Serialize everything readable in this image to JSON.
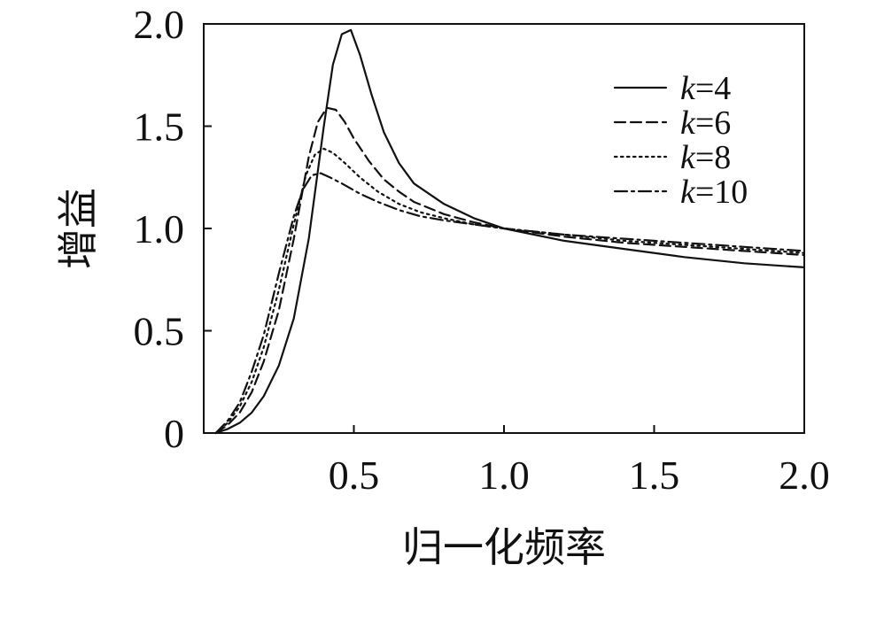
{
  "chart_data": {
    "type": "line",
    "title": "",
    "xlabel": "归一化频率",
    "ylabel": "增益",
    "xlim": [
      0,
      2.0
    ],
    "ylim": [
      0,
      2.0
    ],
    "xticks": [
      {
        "value": 0.5,
        "label": "0.5"
      },
      {
        "value": 1.0,
        "label": "1.0"
      },
      {
        "value": 1.5,
        "label": "1.5"
      },
      {
        "value": 2.0,
        "label": "2.0"
      }
    ],
    "yticks": [
      {
        "value": 0,
        "label": "0"
      },
      {
        "value": 0.5,
        "label": "0.5"
      },
      {
        "value": 1.0,
        "label": "1.0"
      },
      {
        "value": 1.5,
        "label": "1.5"
      },
      {
        "value": 2.0,
        "label": "2.0"
      }
    ],
    "grid": false,
    "legend_position": "top-right",
    "series": [
      {
        "name": "k=4",
        "name_var": "k",
        "name_rest": "=4",
        "dash": "solid",
        "x": [
          0.04,
          0.08,
          0.12,
          0.16,
          0.2,
          0.25,
          0.3,
          0.35,
          0.4,
          0.43,
          0.46,
          0.49,
          0.52,
          0.56,
          0.6,
          0.65,
          0.7,
          0.8,
          0.9,
          1.0,
          1.2,
          1.4,
          1.6,
          1.8,
          2.0
        ],
        "y": [
          0.0,
          0.02,
          0.05,
          0.1,
          0.18,
          0.33,
          0.56,
          0.95,
          1.5,
          1.8,
          1.95,
          1.97,
          1.85,
          1.65,
          1.47,
          1.32,
          1.22,
          1.12,
          1.05,
          1.0,
          0.94,
          0.9,
          0.86,
          0.83,
          0.81
        ]
      },
      {
        "name": "k=6",
        "name_var": "k",
        "name_rest": "=6",
        "dash": "dashed",
        "x": [
          0.04,
          0.08,
          0.12,
          0.16,
          0.2,
          0.25,
          0.3,
          0.35,
          0.38,
          0.41,
          0.44,
          0.47,
          0.5,
          0.55,
          0.6,
          0.65,
          0.7,
          0.8,
          0.9,
          1.0,
          1.2,
          1.4,
          1.6,
          1.8,
          2.0
        ],
        "y": [
          0.0,
          0.04,
          0.1,
          0.2,
          0.35,
          0.6,
          0.95,
          1.35,
          1.52,
          1.59,
          1.58,
          1.52,
          1.44,
          1.33,
          1.24,
          1.18,
          1.13,
          1.07,
          1.03,
          1.0,
          0.96,
          0.93,
          0.91,
          0.89,
          0.87
        ]
      },
      {
        "name": "k=8",
        "name_var": "k",
        "name_rest": "=8",
        "dash": "dotted",
        "x": [
          0.04,
          0.08,
          0.12,
          0.16,
          0.2,
          0.25,
          0.3,
          0.34,
          0.37,
          0.4,
          0.43,
          0.47,
          0.52,
          0.58,
          0.65,
          0.72,
          0.8,
          0.9,
          1.0,
          1.2,
          1.4,
          1.6,
          1.8,
          2.0
        ],
        "y": [
          0.0,
          0.05,
          0.13,
          0.25,
          0.42,
          0.7,
          1.02,
          1.26,
          1.36,
          1.39,
          1.37,
          1.32,
          1.25,
          1.18,
          1.12,
          1.08,
          1.05,
          1.02,
          1.0,
          0.97,
          0.94,
          0.92,
          0.9,
          0.88
        ]
      },
      {
        "name": "k=10",
        "name_var": "k",
        "name_rest": "=10",
        "dash": "dashdot",
        "x": [
          0.04,
          0.08,
          0.12,
          0.16,
          0.2,
          0.25,
          0.3,
          0.33,
          0.36,
          0.39,
          0.42,
          0.46,
          0.52,
          0.58,
          0.65,
          0.72,
          0.8,
          0.9,
          1.0,
          1.2,
          1.4,
          1.6,
          1.8,
          2.0
        ],
        "y": [
          0.0,
          0.06,
          0.15,
          0.3,
          0.48,
          0.78,
          1.06,
          1.19,
          1.26,
          1.27,
          1.25,
          1.22,
          1.17,
          1.13,
          1.09,
          1.06,
          1.04,
          1.02,
          1.0,
          0.97,
          0.95,
          0.93,
          0.91,
          0.89
        ]
      }
    ]
  }
}
